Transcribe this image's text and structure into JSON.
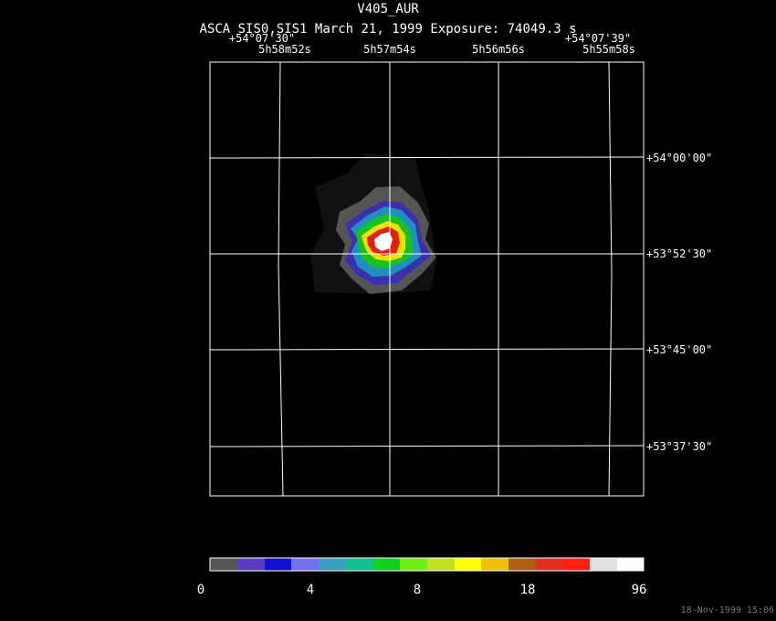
{
  "header": {
    "title": "V405_AUR",
    "subtitle": "ASCA SIS0,SIS1 March 21, 1999 Exposure: 74049.3 s"
  },
  "corner_labels": [
    "+54°07'30\"",
    "+54°07'39\""
  ],
  "ra_labels": [
    "5h58m52s",
    "5h57m54s",
    "5h56m56s",
    "5h55m58s"
  ],
  "dec_labels": [
    "+54°00'00\"",
    "+53°52'30\"",
    "+53°45'00\"",
    "+53°37'30\""
  ],
  "colorbar": {
    "ticks": [
      0,
      4,
      8,
      18,
      96
    ]
  },
  "footer": {
    "timestamp": "18-Nov-1999 15:06"
  }
}
